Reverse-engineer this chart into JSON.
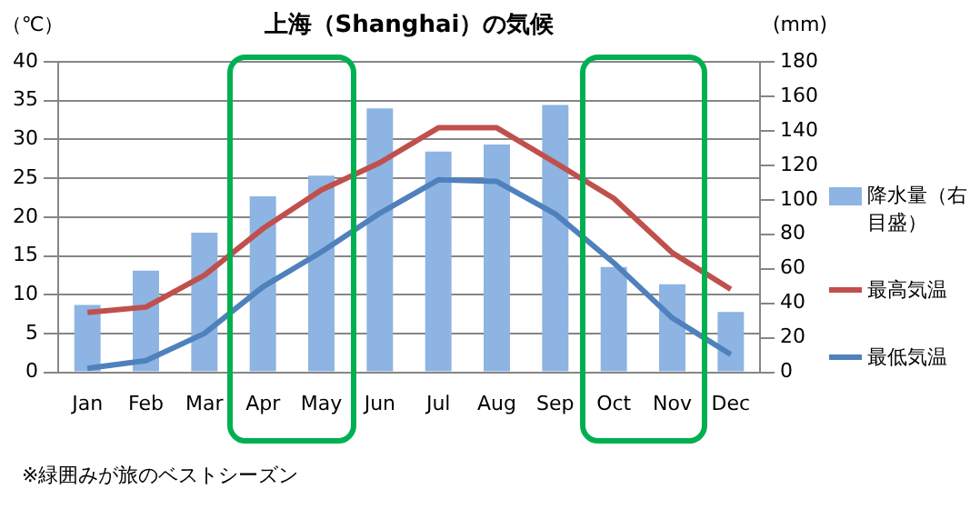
{
  "chart_data": {
    "type": "bar",
    "title": "上海（Shanghai）の気候",
    "ylabel": "（℃）",
    "y2label": "(mm)",
    "categories": [
      "Jan",
      "Feb",
      "Mar",
      "Apr",
      "May",
      "Jun",
      "Jul",
      "Aug",
      "Sep",
      "Oct",
      "Nov",
      "Dec"
    ],
    "series": [
      {
        "name": "降水量（右目盛）",
        "axis": "y2",
        "color": "#8db4e2",
        "values": [
          39,
          59,
          81,
          102,
          114,
          153,
          128,
          132,
          155,
          61,
          51,
          35
        ]
      },
      {
        "name": "最高気温",
        "type": "line",
        "color": "#c0504d",
        "values": [
          7.7,
          8.4,
          12.5,
          18.5,
          23.5,
          27,
          31.5,
          31.5,
          27,
          22.4,
          15.4,
          10.7
        ]
      },
      {
        "name": "最低気温",
        "type": "line",
        "color": "#4f81bd",
        "values": [
          0.5,
          1.5,
          5,
          11,
          15.5,
          20.5,
          24.8,
          24.6,
          20.4,
          14.1,
          7,
          2.3
        ]
      }
    ],
    "ylim": [
      0,
      40
    ],
    "yticks": [
      0,
      5,
      10,
      15,
      20,
      25,
      30,
      35,
      40
    ],
    "y2lim": [
      0,
      180
    ],
    "y2ticks": [
      0,
      20,
      40,
      60,
      80,
      100,
      120,
      140,
      160,
      180
    ],
    "grid": "y",
    "legend": "right",
    "marker": "none",
    "annotations": [
      "※緑囲みが旅のベストシーズン"
    ]
  }
}
